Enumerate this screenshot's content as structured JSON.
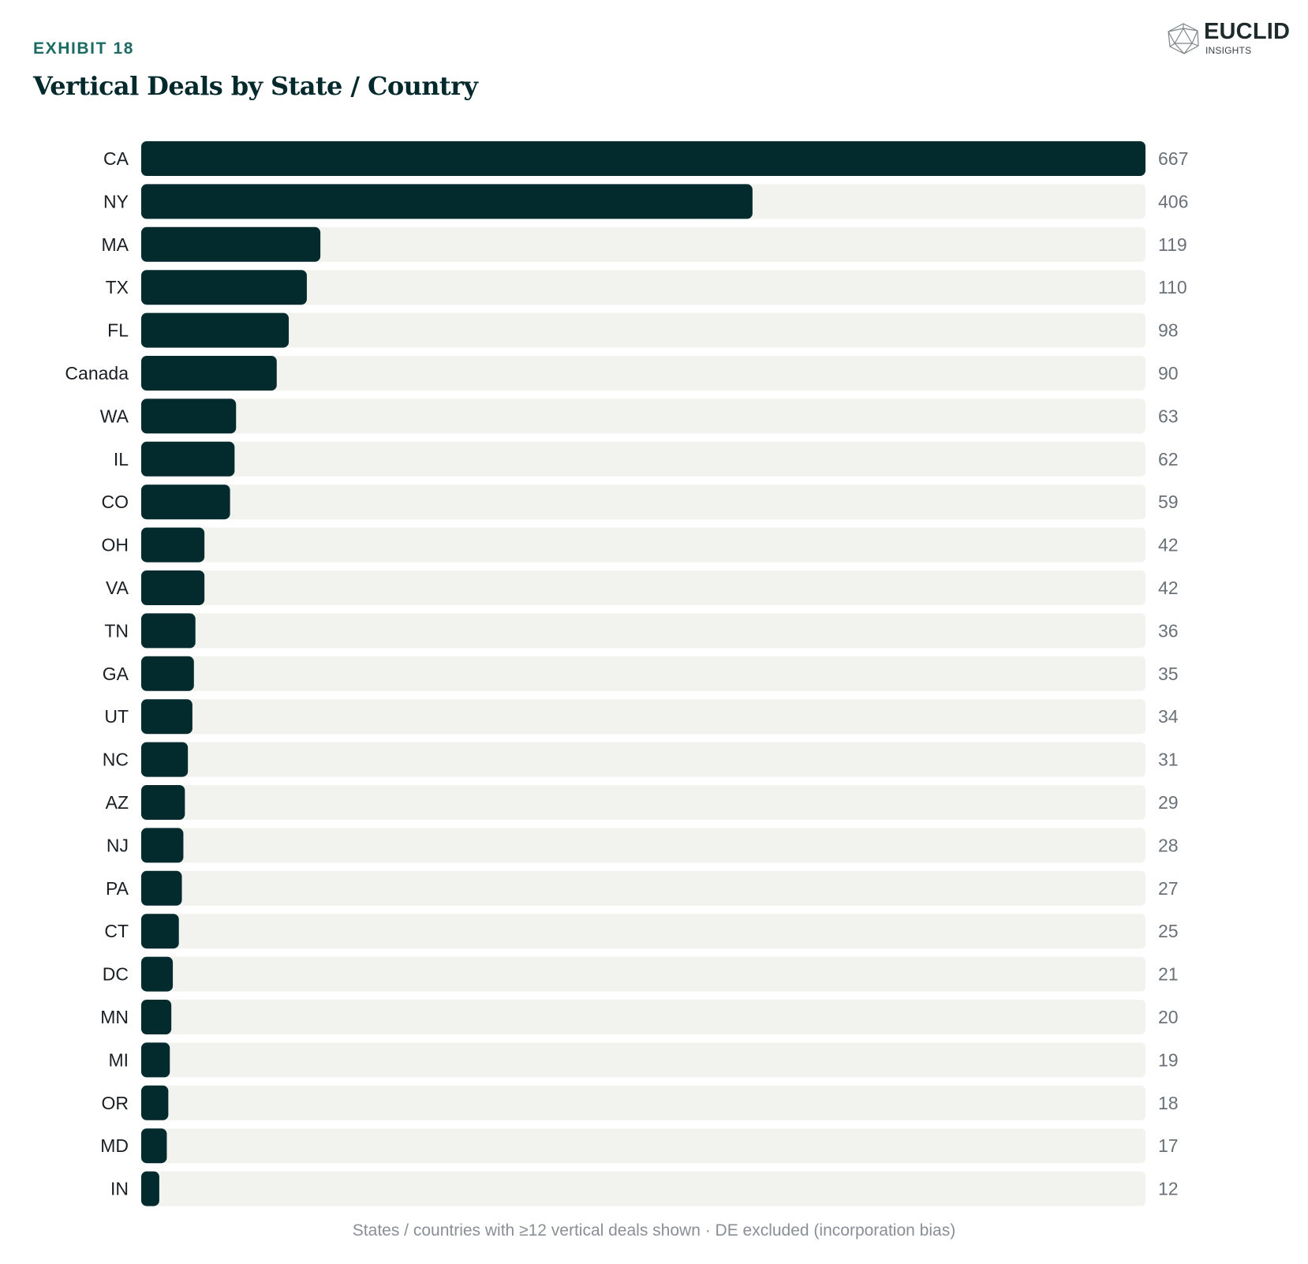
{
  "header": {
    "exhibit": "EXHIBIT 18",
    "title": "Vertical Deals by State / Country"
  },
  "logo": {
    "name": "EUCLID",
    "sub": "INSIGHTS",
    "icon": "icosahedron-icon"
  },
  "footnote": "States / countries with ≥12 vertical deals shown · DE excluded (incorporation bias)",
  "colors": {
    "bar": "#032a2d",
    "track": "#f2f2ee",
    "label": "#1a1f24",
    "value": "#6b7178"
  },
  "chart_data": {
    "type": "bar",
    "orientation": "horizontal",
    "categories": [
      "CA",
      "NY",
      "MA",
      "TX",
      "FL",
      "Canada",
      "WA",
      "IL",
      "CO",
      "OH",
      "VA",
      "TN",
      "GA",
      "UT",
      "NC",
      "AZ",
      "NJ",
      "PA",
      "CT",
      "DC",
      "MN",
      "MI",
      "OR",
      "MD",
      "IN"
    ],
    "values": [
      667,
      406,
      119,
      110,
      98,
      90,
      63,
      62,
      59,
      42,
      42,
      36,
      35,
      34,
      31,
      29,
      28,
      27,
      25,
      21,
      20,
      19,
      18,
      17,
      12
    ],
    "xlim": [
      0,
      667
    ],
    "grid": false,
    "legend": "none"
  }
}
